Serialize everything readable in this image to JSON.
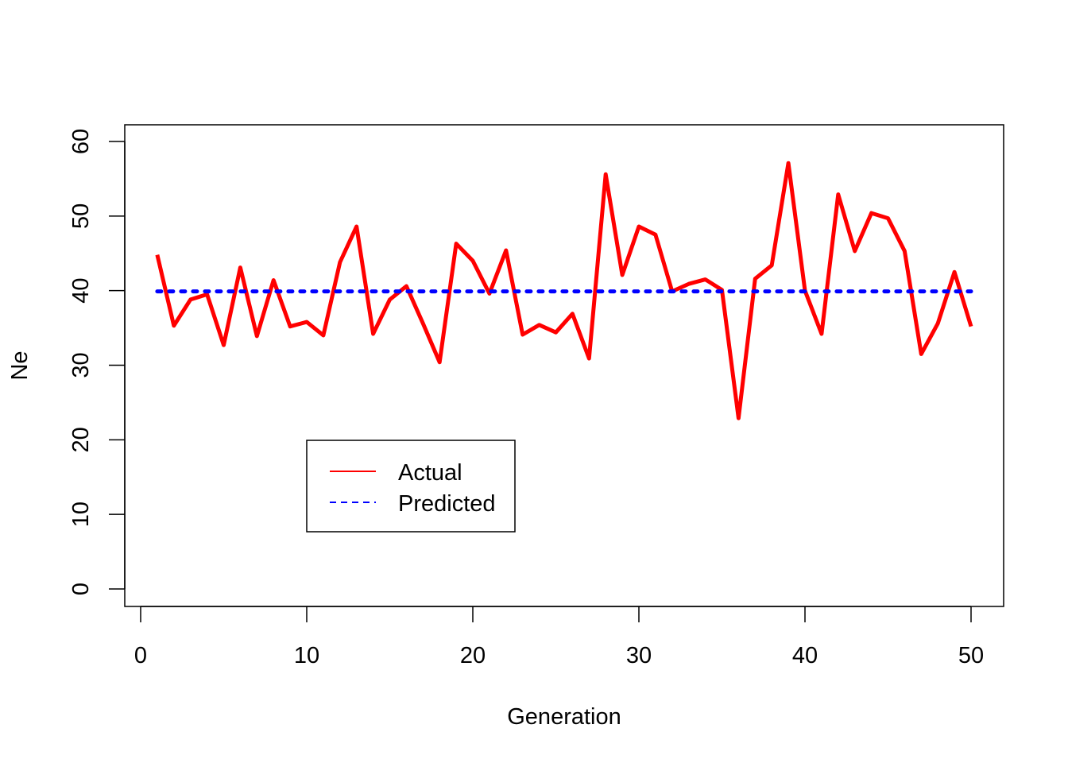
{
  "chart_data": {
    "type": "line",
    "title": "",
    "xlabel": "Generation",
    "ylabel": "Ne",
    "xlim": [
      0,
      50
    ],
    "ylim": [
      0,
      60
    ],
    "xticks": [
      0,
      10,
      20,
      30,
      40,
      50
    ],
    "yticks": [
      0,
      10,
      20,
      30,
      40,
      50,
      60
    ],
    "grid": false,
    "legend_position": "bottom-left",
    "x": [
      1,
      2,
      3,
      4,
      5,
      6,
      7,
      8,
      9,
      10,
      11,
      12,
      13,
      14,
      15,
      16,
      17,
      18,
      19,
      20,
      21,
      22,
      23,
      24,
      25,
      26,
      27,
      28,
      29,
      30,
      31,
      32,
      33,
      34,
      35,
      36,
      37,
      38,
      39,
      40,
      41,
      42,
      43,
      44,
      45,
      46,
      47,
      48,
      49,
      50
    ],
    "series": [
      {
        "name": "Actual",
        "color": "#ff0000",
        "style": "solid",
        "values": [
          44.8,
          35.3,
          38.8,
          39.5,
          32.7,
          43.1,
          33.9,
          41.4,
          35.2,
          35.8,
          34.0,
          43.8,
          48.6,
          34.2,
          38.8,
          40.6,
          35.6,
          30.4,
          46.3,
          44.0,
          39.6,
          45.4,
          34.1,
          35.4,
          34.4,
          36.9,
          30.9,
          55.6,
          42.1,
          48.6,
          47.5,
          39.9,
          40.9,
          41.5,
          40.1,
          22.9,
          41.6,
          43.4,
          57.1,
          40.0,
          34.2,
          52.9,
          45.3,
          50.4,
          49.7,
          45.3,
          31.5,
          35.6,
          42.5,
          35.2
        ]
      },
      {
        "name": "Predicted",
        "color": "#0000ff",
        "style": "dotted",
        "values": [
          39.9,
          39.9,
          39.9,
          39.9,
          39.9,
          39.9,
          39.9,
          39.9,
          39.9,
          39.9,
          39.9,
          39.9,
          39.9,
          39.9,
          39.9,
          39.9,
          39.9,
          39.9,
          39.9,
          39.9,
          39.9,
          39.9,
          39.9,
          39.9,
          39.9,
          39.9,
          39.9,
          39.9,
          39.9,
          39.9,
          39.9,
          39.9,
          39.9,
          39.9,
          39.9,
          39.9,
          39.9,
          39.9,
          39.9,
          39.9,
          39.9,
          39.9,
          39.9,
          39.9,
          39.9,
          39.9,
          39.9,
          39.9,
          39.9,
          39.9
        ]
      }
    ]
  }
}
